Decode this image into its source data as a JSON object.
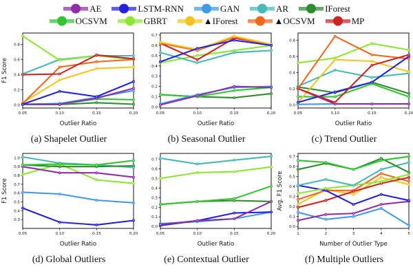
{
  "palette": {
    "AE": "#8f2fa8",
    "LSTM-RNN": "#2222dd",
    "GAN": "#3f9ae8",
    "AR": "#45b8b8",
    "IForest": "#2e8b2e",
    "OCSVM": "#33c433",
    "GBRT": "#8ce632",
    "▲IForest": "#f2c51e",
    "▲OCSVM": "#f2661e",
    "MP": "#cc2424"
  },
  "legend": {
    "rows": [
      [
        "AE",
        "LSTM-RNN",
        "GAN",
        "AR",
        "IForest"
      ],
      [
        "OCSVM",
        "GBRT",
        "▲IForest",
        "▲OCSVM",
        "MP"
      ]
    ]
  },
  "chart_data": [
    {
      "caption": "(a) Shapelet Outlier",
      "type": "line",
      "xlabel": "Outlier Ratio",
      "ylabel": "F1 Score",
      "x": [
        0.05,
        0.1,
        0.15,
        0.2
      ],
      "xtick_labels": [
        "0.05",
        "0.10",
        "0.15",
        "0.20"
      ],
      "ylim": [
        -0.04,
        0.95
      ],
      "yticks": [
        0.0,
        0.2,
        0.4,
        0.6,
        0.8
      ],
      "series": [
        {
          "name": "AR",
          "values": [
            0.41,
            0.6,
            0.65,
            0.65
          ]
        },
        {
          "name": "GBRT",
          "values": [
            0.91,
            0.59,
            0.65,
            0.6
          ]
        },
        {
          "name": "▲IForest",
          "values": [
            0.03,
            0.33,
            0.48,
            0.5
          ]
        },
        {
          "name": "▲OCSVM",
          "values": [
            0.02,
            0.5,
            0.57,
            0.6
          ]
        },
        {
          "name": "MP",
          "values": [
            0.4,
            0.41,
            0.66,
            0.61
          ]
        },
        {
          "name": "IForest",
          "values": [
            0.005,
            0.005,
            0.03,
            0.01
          ]
        },
        {
          "name": "OCSVM",
          "values": [
            0.01,
            0.01,
            0.08,
            0.07
          ]
        },
        {
          "name": "GAN",
          "values": [
            0.01,
            0.02,
            0.1,
            0.19
          ]
        },
        {
          "name": "AE",
          "values": [
            0.01,
            0.01,
            0.09,
            0.22
          ]
        },
        {
          "name": "LSTM-RNN",
          "values": [
            0.01,
            0.18,
            0.11,
            0.31
          ]
        }
      ]
    },
    {
      "caption": "(b) Seasonal Outlier",
      "type": "line",
      "xlabel": "Outlier Ratio",
      "x": [
        0.05,
        0.1,
        0.15,
        0.2
      ],
      "xtick_labels": [
        "0.05",
        "0.10",
        "0.15",
        "0.20"
      ],
      "ylim": [
        -0.01,
        0.72
      ],
      "yticks": [
        0.0,
        0.1,
        0.2,
        0.3,
        0.4,
        0.5,
        0.6,
        0.7
      ],
      "series": [
        {
          "name": "GBRT",
          "values": [
            0.43,
            0.5,
            0.55,
            0.6
          ]
        },
        {
          "name": "AR",
          "values": [
            0.53,
            0.43,
            0.53,
            0.55
          ]
        },
        {
          "name": "MP",
          "values": [
            0.62,
            0.46,
            0.67,
            0.61
          ]
        },
        {
          "name": "▲OCSVM",
          "values": [
            0.62,
            0.55,
            0.68,
            0.6
          ]
        },
        {
          "name": "▲IForest",
          "values": [
            0.63,
            0.56,
            0.69,
            0.61
          ]
        },
        {
          "name": "IForest",
          "values": [
            0.12,
            0.1,
            0.09,
            0.13
          ]
        },
        {
          "name": "OCSVM",
          "values": [
            0.12,
            0.1,
            0.16,
            0.19
          ]
        },
        {
          "name": "GAN",
          "values": [
            0.03,
            0.12,
            0.19,
            0.2
          ]
        },
        {
          "name": "AE",
          "values": [
            0.02,
            0.11,
            0.2,
            0.19
          ]
        },
        {
          "name": "LSTM-RNN",
          "values": [
            0.44,
            0.57,
            0.65,
            0.6
          ]
        }
      ]
    },
    {
      "caption": "(c) Trend Outlier",
      "type": "line",
      "xlabel": "Outlier Ratio",
      "x": [
        0.05,
        0.1,
        0.15,
        0.2
      ],
      "xtick_labels": [
        "0.05",
        "0.10",
        "0.15",
        "0.20"
      ],
      "ylim": [
        -0.04,
        0.89
      ],
      "yticks": [
        0.0,
        0.2,
        0.4,
        0.6,
        0.8
      ],
      "series": [
        {
          "name": "AR",
          "values": [
            0.23,
            0.43,
            0.34,
            0.39
          ]
        },
        {
          "name": "OCSVM",
          "values": [
            0.1,
            0.1,
            0.26,
            0.1
          ]
        },
        {
          "name": "IForest",
          "values": [
            0.22,
            0.15,
            0.28,
            0.14
          ]
        },
        {
          "name": "GBRT",
          "values": [
            0.52,
            0.58,
            0.76,
            0.68
          ]
        },
        {
          "name": "▲IForest",
          "values": [
            0.03,
            0.56,
            0.54,
            0.41
          ]
        },
        {
          "name": "▲OCSVM",
          "values": [
            0.2,
            0.85,
            0.62,
            0.57
          ]
        },
        {
          "name": "GAN",
          "values": [
            0.005,
            0.01,
            0.01,
            0.01
          ]
        },
        {
          "name": "AE",
          "values": [
            0.2,
            0.01,
            0.01,
            0.01
          ]
        },
        {
          "name": "LSTM-RNN",
          "values": [
            0.03,
            0.16,
            0.28,
            0.6
          ]
        },
        {
          "name": "MP",
          "values": [
            0.2,
            0.03,
            0.49,
            0.62
          ]
        }
      ]
    },
    {
      "caption": "(d) Global Outliers",
      "type": "line",
      "xlabel": "Outlier Ratio",
      "ylabel": "F1 Score",
      "x": [
        0.05,
        0.1,
        0.15,
        0.2
      ],
      "xtick_labels": [
        "0.05",
        "0.10",
        "0.15",
        "0.20"
      ],
      "ylim": [
        0.2,
        1.05
      ],
      "yticks": [
        0.3,
        0.4,
        0.5,
        0.6,
        0.7,
        0.8,
        0.9,
        1.0
      ],
      "series": [
        {
          "name": "AR",
          "values": [
            1.01,
            0.94,
            0.92,
            0.89
          ]
        },
        {
          "name": "GBRT",
          "values": [
            0.81,
            0.93,
            0.75,
            0.71
          ]
        },
        {
          "name": "AE",
          "values": [
            0.9,
            0.83,
            0.83,
            0.78
          ]
        },
        {
          "name": "IForest",
          "values": [
            0.92,
            0.9,
            0.9,
            0.91
          ]
        },
        {
          "name": "OCSVM",
          "values": [
            0.92,
            0.93,
            0.92,
            0.97
          ]
        },
        {
          "name": "GAN",
          "values": [
            0.61,
            0.59,
            0.52,
            0.49
          ]
        },
        {
          "name": "LSTM-RNN",
          "values": [
            0.43,
            0.27,
            0.24,
            0.29
          ]
        }
      ]
    },
    {
      "caption": "(e) Contextual Outlier",
      "type": "line",
      "xlabel": "Outlier Ratio",
      "x": [
        0.05,
        0.1,
        0.15,
        0.2
      ],
      "xtick_labels": [
        "0.05",
        "0.10",
        "0.15",
        "0.20"
      ],
      "ylim": [
        -0.02,
        0.76
      ],
      "yticks": [
        0.0,
        0.1,
        0.2,
        0.3,
        0.4,
        0.5,
        0.6,
        0.7
      ],
      "series": [
        {
          "name": "AR",
          "values": [
            0.71,
            0.65,
            0.69,
            0.73
          ]
        },
        {
          "name": "GBRT",
          "values": [
            0.5,
            0.56,
            0.57,
            0.62
          ]
        },
        {
          "name": "IForest",
          "values": [
            0.23,
            0.26,
            0.27,
            0.26
          ]
        },
        {
          "name": "OCSVM",
          "values": [
            0.23,
            0.26,
            0.29,
            0.42
          ]
        },
        {
          "name": "GAN",
          "values": [
            0.03,
            0.05,
            0.08,
            0.15
          ]
        },
        {
          "name": "LSTM-RNN",
          "values": [
            0.01,
            0.06,
            0.14,
            0.15
          ]
        },
        {
          "name": "AE",
          "values": [
            0.02,
            0.06,
            0.08,
            0.26
          ]
        }
      ]
    },
    {
      "caption": "(f) Multiple Outliers",
      "type": "line",
      "xlabel": "Number of Outlier Type",
      "ylabel": "Avg. F1 Score",
      "x": [
        1,
        2,
        3,
        4,
        5
      ],
      "xtick_labels": [
        "1",
        "2",
        "3",
        "4",
        "5"
      ],
      "ylim": [
        -0.02,
        0.73
      ],
      "yticks": [
        0.0,
        0.1,
        0.2,
        0.3,
        0.4,
        0.5,
        0.6,
        0.7
      ],
      "series": [
        {
          "name": "GAN",
          "values": [
            0.14,
            0.07,
            0.1,
            0.18,
            0.01
          ]
        },
        {
          "name": "AE",
          "values": [
            0.06,
            0.12,
            0.13,
            0.22,
            0.25
          ]
        },
        {
          "name": "▲IForest",
          "values": [
            0.22,
            0.37,
            0.32,
            0.49,
            0.42
          ]
        },
        {
          "name": "▲OCSVM",
          "values": [
            0.27,
            0.36,
            0.36,
            0.53,
            0.45
          ]
        },
        {
          "name": "MP",
          "values": [
            0.19,
            0.26,
            0.35,
            0.43,
            0.49
          ]
        },
        {
          "name": "LSTM-RNN",
          "values": [
            0.41,
            0.36,
            0.22,
            0.32,
            0.26
          ]
        },
        {
          "name": "GBRT",
          "values": [
            0.33,
            0.38,
            0.41,
            0.45,
            0.52
          ]
        },
        {
          "name": "AR",
          "values": [
            0.41,
            0.47,
            0.41,
            0.57,
            0.64
          ]
        },
        {
          "name": "IForest",
          "values": [
            0.57,
            0.63,
            0.57,
            0.68,
            0.54
          ]
        },
        {
          "name": "OCSVM",
          "values": [
            0.66,
            0.64,
            0.57,
            0.66,
            0.7
          ]
        }
      ]
    }
  ]
}
